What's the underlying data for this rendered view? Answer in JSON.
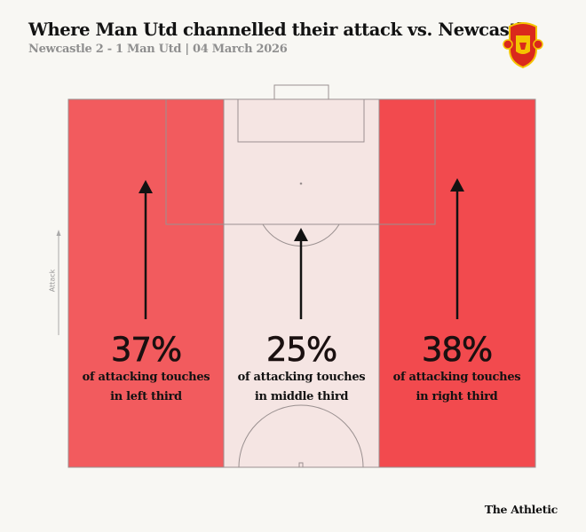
{
  "header": {
    "title": "Where Man Utd channelled their attack vs. Newcastle",
    "subtitle": "Newcastle 2 - 1 Man Utd | 04 March 2026",
    "logo": "Manchester United crest"
  },
  "direction_label": "Attack",
  "thirds": [
    {
      "name": "left",
      "value_pct": 37,
      "value_label": "37%",
      "caption_line1": "of attacking touches",
      "caption_line2": "in left third",
      "color": "#f25b5e"
    },
    {
      "name": "middle",
      "value_pct": 25,
      "value_label": "25%",
      "caption_line1": "of attacking touches",
      "caption_line2": "in middle third",
      "color": "#f5e5e3"
    },
    {
      "name": "right",
      "value_pct": 38,
      "value_label": "38%",
      "caption_line1": "of attacking touches",
      "caption_line2": "in right third",
      "color": "#f24a4e"
    }
  ],
  "footer": {
    "credit": "The Athletic"
  }
}
